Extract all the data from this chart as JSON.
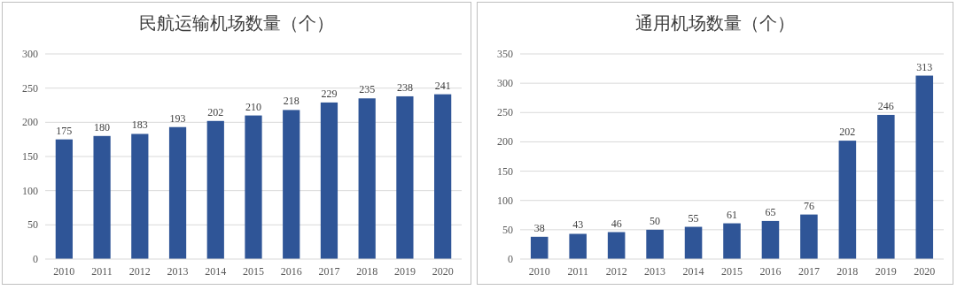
{
  "chart_data": [
    {
      "type": "bar",
      "title": "民航运输机场数量（个）",
      "categories": [
        "2010",
        "2011",
        "2012",
        "2013",
        "2014",
        "2015",
        "2016",
        "2017",
        "2018",
        "2019",
        "2020"
      ],
      "values": [
        175,
        180,
        183,
        193,
        202,
        210,
        218,
        229,
        235,
        238,
        241
      ],
      "color": "#2f5597",
      "ylim": [
        0,
        300
      ],
      "yticks": [
        0,
        50,
        100,
        150,
        200,
        250,
        300
      ],
      "grid": "y",
      "data_labels": true
    },
    {
      "type": "bar",
      "title": "通用机场数量（个）",
      "categories": [
        "2010",
        "2011",
        "2012",
        "2013",
        "2014",
        "2015",
        "2016",
        "2017",
        "2018",
        "2019",
        "2020"
      ],
      "values": [
        38,
        43,
        46,
        50,
        55,
        61,
        65,
        76,
        202,
        246,
        313
      ],
      "color": "#2f5597",
      "ylim": [
        0,
        350
      ],
      "yticks": [
        0,
        50,
        100,
        150,
        200,
        250,
        300,
        350
      ],
      "grid": "y",
      "data_labels": true
    }
  ]
}
